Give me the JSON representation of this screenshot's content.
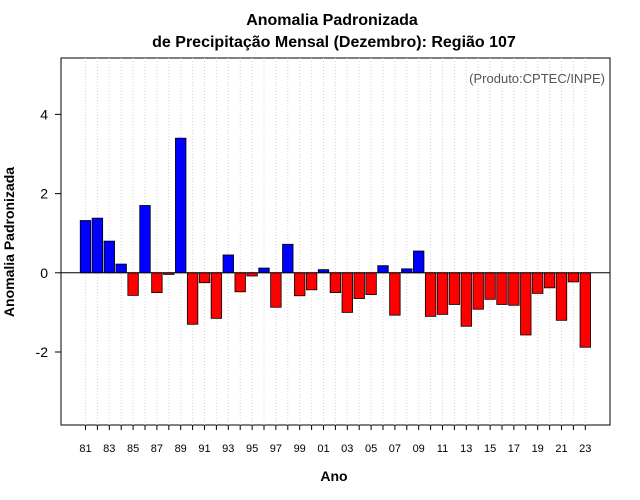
{
  "chart_data": {
    "type": "bar",
    "title": "Anomalia Padronizada",
    "subtitle": "de Precipitação Mensal (Dezembro): Região 107",
    "xlabel": "Ano",
    "ylabel": "Anomalia Padronizada",
    "annotation": "(Produto:CPTEC/INPE)",
    "ylim": [
      -3.9,
      5.4
    ],
    "yticks": [
      -2,
      0,
      2,
      4
    ],
    "grid": "vertical dotted",
    "positive_color": "#0000ff",
    "negative_color": "#ff0000",
    "x": [
      1981,
      1982,
      1983,
      1984,
      1985,
      1986,
      1987,
      1988,
      1989,
      1990,
      1991,
      1992,
      1993,
      1994,
      1995,
      1996,
      1997,
      1998,
      1999,
      2000,
      2001,
      2002,
      2003,
      2004,
      2005,
      2006,
      2007,
      2008,
      2009,
      2010,
      2011,
      2012,
      2013,
      2014,
      2015,
      2016,
      2017,
      2018,
      2019,
      2020,
      2021,
      2022,
      2023
    ],
    "xtick_labels": [
      "81",
      "83",
      "85",
      "87",
      "89",
      "91",
      "93",
      "95",
      "97",
      "99",
      "01",
      "03",
      "05",
      "07",
      "09",
      "11",
      "13",
      "15",
      "17",
      "19",
      "21",
      "23"
    ],
    "values": [
      1.32,
      1.38,
      0.8,
      0.22,
      -0.57,
      1.7,
      -0.5,
      -0.04,
      3.4,
      -1.3,
      -0.25,
      -1.15,
      0.45,
      -0.48,
      -0.08,
      0.12,
      -0.87,
      0.72,
      -0.58,
      -0.43,
      0.08,
      -0.5,
      -1.0,
      -0.65,
      -0.55,
      0.18,
      -1.07,
      0.1,
      0.55,
      -1.1,
      -1.05,
      -0.8,
      -1.35,
      -0.92,
      -0.67,
      -0.8,
      -0.82,
      -1.57,
      -0.52,
      -0.38,
      -1.2,
      -0.23,
      -1.88
    ]
  }
}
